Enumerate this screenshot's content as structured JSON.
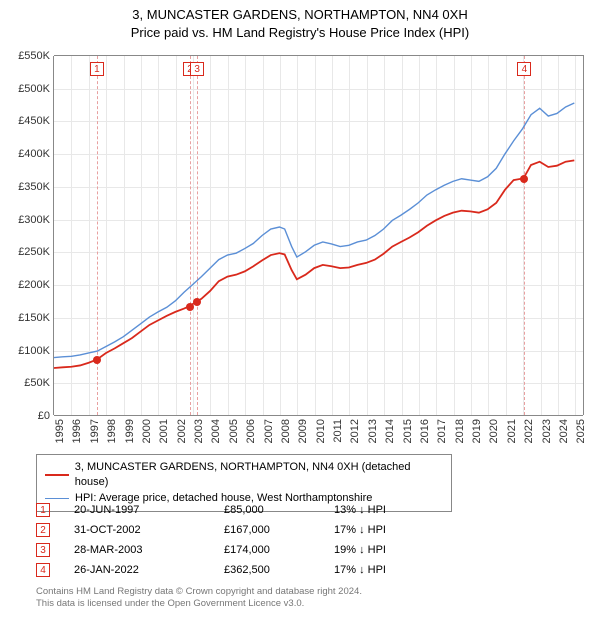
{
  "title": {
    "line1": "3, MUNCASTER GARDENS, NORTHAMPTON, NN4 0XH",
    "line2": "Price paid vs. HM Land Registry's House Price Index (HPI)"
  },
  "chart": {
    "type": "line",
    "x_min": 1995,
    "x_max": 2025.5,
    "y_min": 0,
    "y_max": 550000,
    "y_ticks": [
      0,
      50000,
      100000,
      150000,
      200000,
      250000,
      300000,
      350000,
      400000,
      450000,
      500000,
      550000
    ],
    "y_tick_labels": [
      "£0",
      "£50K",
      "£100K",
      "£150K",
      "£200K",
      "£250K",
      "£300K",
      "£350K",
      "£400K",
      "£450K",
      "£500K",
      "£550K"
    ],
    "x_ticks": [
      1995,
      1996,
      1997,
      1998,
      1999,
      2000,
      2001,
      2002,
      2003,
      2004,
      2005,
      2006,
      2007,
      2008,
      2009,
      2010,
      2011,
      2012,
      2013,
      2014,
      2015,
      2016,
      2017,
      2018,
      2019,
      2020,
      2021,
      2022,
      2023,
      2024,
      2025
    ],
    "grid_color": "#e8e8e8",
    "axis_color": "#888888",
    "background_color": "#ffffff",
    "title_fontsize": 13,
    "label_fontsize": 11
  },
  "series": {
    "price_paid": {
      "label": "3, MUNCASTER GARDENS, NORTHAMPTON, NN4 0XH (detached house)",
      "color": "#d9291c",
      "line_width": 1.8,
      "points": [
        [
          1995.0,
          72000
        ],
        [
          1995.5,
          73000
        ],
        [
          1996.0,
          74000
        ],
        [
          1996.5,
          76000
        ],
        [
          1997.0,
          80000
        ],
        [
          1997.47,
          85000
        ],
        [
          1998.0,
          95000
        ],
        [
          1998.5,
          102000
        ],
        [
          1999.0,
          110000
        ],
        [
          1999.5,
          118000
        ],
        [
          2000.0,
          128000
        ],
        [
          2000.5,
          138000
        ],
        [
          2001.0,
          145000
        ],
        [
          2001.5,
          152000
        ],
        [
          2002.0,
          158000
        ],
        [
          2002.5,
          163000
        ],
        [
          2002.83,
          167000
        ],
        [
          2003.0,
          170000
        ],
        [
          2003.24,
          174000
        ],
        [
          2003.5,
          178000
        ],
        [
          2004.0,
          190000
        ],
        [
          2004.5,
          205000
        ],
        [
          2005.0,
          212000
        ],
        [
          2005.5,
          215000
        ],
        [
          2006.0,
          220000
        ],
        [
          2006.5,
          228000
        ],
        [
          2007.0,
          237000
        ],
        [
          2007.5,
          245000
        ],
        [
          2008.0,
          248000
        ],
        [
          2008.3,
          246000
        ],
        [
          2008.7,
          222000
        ],
        [
          2009.0,
          208000
        ],
        [
          2009.5,
          215000
        ],
        [
          2010.0,
          225000
        ],
        [
          2010.5,
          230000
        ],
        [
          2011.0,
          228000
        ],
        [
          2011.5,
          225000
        ],
        [
          2012.0,
          226000
        ],
        [
          2012.5,
          230000
        ],
        [
          2013.0,
          233000
        ],
        [
          2013.5,
          238000
        ],
        [
          2014.0,
          247000
        ],
        [
          2014.5,
          258000
        ],
        [
          2015.0,
          265000
        ],
        [
          2015.5,
          272000
        ],
        [
          2016.0,
          280000
        ],
        [
          2016.5,
          290000
        ],
        [
          2017.0,
          298000
        ],
        [
          2017.5,
          305000
        ],
        [
          2018.0,
          310000
        ],
        [
          2018.5,
          313000
        ],
        [
          2019.0,
          312000
        ],
        [
          2019.5,
          310000
        ],
        [
          2020.0,
          315000
        ],
        [
          2020.5,
          325000
        ],
        [
          2021.0,
          345000
        ],
        [
          2021.5,
          360000
        ],
        [
          2022.07,
          362500
        ],
        [
          2022.5,
          383000
        ],
        [
          2023.0,
          388000
        ],
        [
          2023.5,
          380000
        ],
        [
          2024.0,
          382000
        ],
        [
          2024.5,
          388000
        ],
        [
          2025.0,
          390000
        ]
      ]
    },
    "hpi": {
      "label": "HPI: Average price, detached house, West Northamptonshire",
      "color": "#5b8fd6",
      "line_width": 1.4,
      "points": [
        [
          1995.0,
          88000
        ],
        [
          1995.5,
          89000
        ],
        [
          1996.0,
          90000
        ],
        [
          1996.5,
          92000
        ],
        [
          1997.0,
          95000
        ],
        [
          1997.5,
          98000
        ],
        [
          1998.0,
          105000
        ],
        [
          1998.5,
          112000
        ],
        [
          1999.0,
          120000
        ],
        [
          1999.5,
          130000
        ],
        [
          2000.0,
          140000
        ],
        [
          2000.5,
          150000
        ],
        [
          2001.0,
          158000
        ],
        [
          2001.5,
          165000
        ],
        [
          2002.0,
          175000
        ],
        [
          2002.5,
          188000
        ],
        [
          2003.0,
          200000
        ],
        [
          2003.5,
          212000
        ],
        [
          2004.0,
          225000
        ],
        [
          2004.5,
          238000
        ],
        [
          2005.0,
          245000
        ],
        [
          2005.5,
          248000
        ],
        [
          2006.0,
          255000
        ],
        [
          2006.5,
          263000
        ],
        [
          2007.0,
          275000
        ],
        [
          2007.5,
          285000
        ],
        [
          2008.0,
          288000
        ],
        [
          2008.3,
          285000
        ],
        [
          2008.7,
          258000
        ],
        [
          2009.0,
          242000
        ],
        [
          2009.5,
          250000
        ],
        [
          2010.0,
          260000
        ],
        [
          2010.5,
          265000
        ],
        [
          2011.0,
          262000
        ],
        [
          2011.5,
          258000
        ],
        [
          2012.0,
          260000
        ],
        [
          2012.5,
          265000
        ],
        [
          2013.0,
          268000
        ],
        [
          2013.5,
          275000
        ],
        [
          2014.0,
          285000
        ],
        [
          2014.5,
          298000
        ],
        [
          2015.0,
          306000
        ],
        [
          2015.5,
          315000
        ],
        [
          2016.0,
          325000
        ],
        [
          2016.5,
          337000
        ],
        [
          2017.0,
          345000
        ],
        [
          2017.5,
          352000
        ],
        [
          2018.0,
          358000
        ],
        [
          2018.5,
          362000
        ],
        [
          2019.0,
          360000
        ],
        [
          2019.5,
          358000
        ],
        [
          2020.0,
          365000
        ],
        [
          2020.5,
          378000
        ],
        [
          2021.0,
          400000
        ],
        [
          2021.5,
          420000
        ],
        [
          2022.0,
          438000
        ],
        [
          2022.5,
          460000
        ],
        [
          2023.0,
          470000
        ],
        [
          2023.5,
          458000
        ],
        [
          2024.0,
          462000
        ],
        [
          2024.5,
          472000
        ],
        [
          2025.0,
          478000
        ]
      ]
    }
  },
  "markers": [
    {
      "idx": "1",
      "x": 1997.47,
      "y": 85000,
      "date": "20-JUN-1997",
      "price": "£85,000",
      "pct": "13% ↓ HPI"
    },
    {
      "idx": "2",
      "x": 2002.83,
      "y": 167000,
      "date": "31-OCT-2002",
      "price": "£167,000",
      "pct": "17% ↓ HPI"
    },
    {
      "idx": "3",
      "x": 2003.24,
      "y": 174000,
      "date": "28-MAR-2003",
      "price": "£174,000",
      "pct": "19% ↓ HPI"
    },
    {
      "idx": "4",
      "x": 2022.07,
      "y": 362500,
      "date": "26-JAN-2022",
      "price": "£362,500",
      "pct": "17% ↓ HPI"
    }
  ],
  "marker_style": {
    "border_color": "#d9291c",
    "dash_color": "#e8a0a0",
    "box_size": 14,
    "dot_color": "#d9291c",
    "dot_size": 8
  },
  "footer": {
    "line1": "Contains HM Land Registry data © Crown copyright and database right 2024.",
    "line2": "This data is licensed under the Open Government Licence v3.0."
  }
}
